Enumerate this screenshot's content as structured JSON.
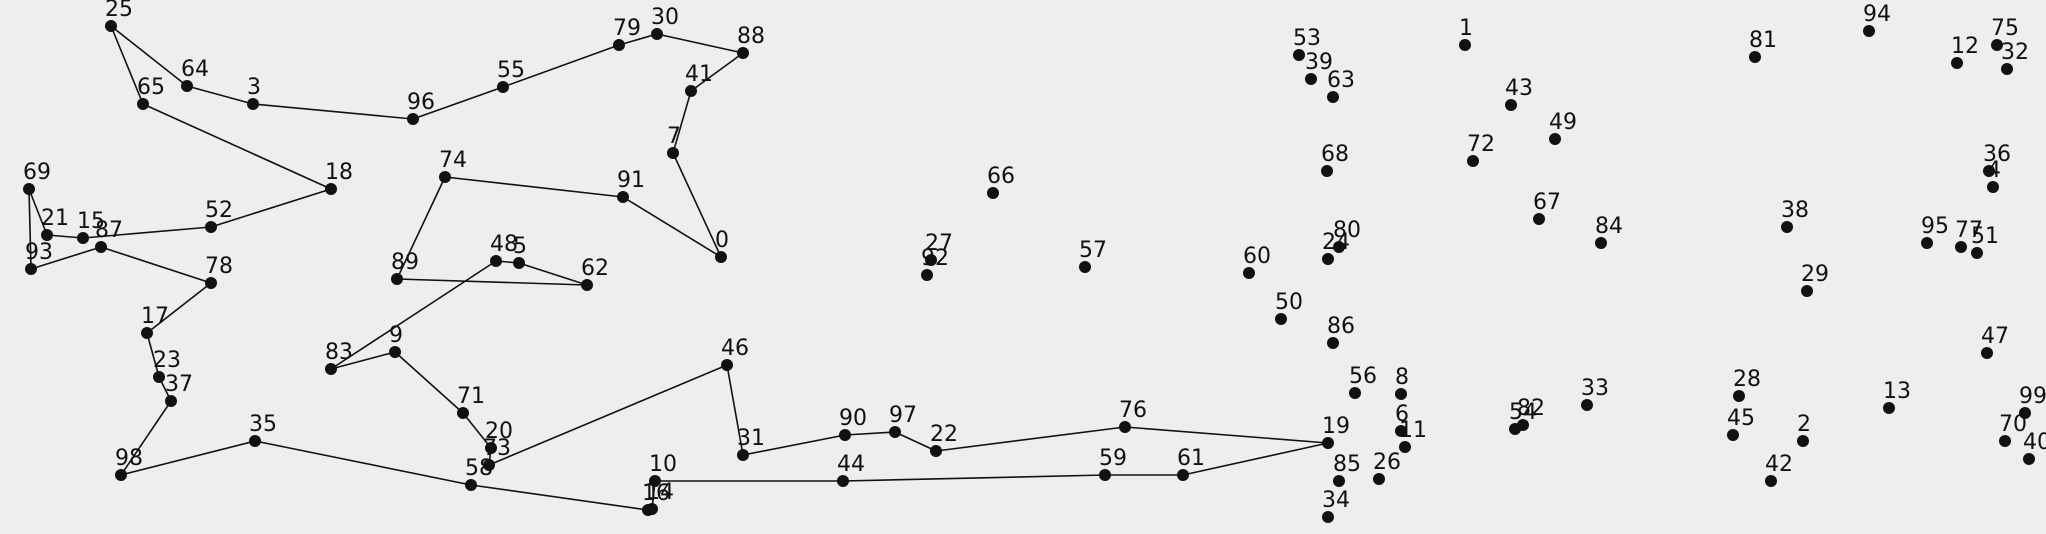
{
  "diagram": {
    "type": "numbered point graph with route",
    "nodes": [
      {
        "id": "0"
      },
      {
        "id": "1"
      },
      {
        "id": "2"
      },
      {
        "id": "3"
      },
      {
        "id": "4"
      },
      {
        "id": "5"
      },
      {
        "id": "6"
      },
      {
        "id": "7"
      },
      {
        "id": "8"
      },
      {
        "id": "9"
      },
      {
        "id": "10"
      },
      {
        "id": "11"
      },
      {
        "id": "12"
      },
      {
        "id": "13"
      },
      {
        "id": "14"
      },
      {
        "id": "15"
      },
      {
        "id": "16"
      },
      {
        "id": "17"
      },
      {
        "id": "18"
      },
      {
        "id": "19"
      },
      {
        "id": "20"
      },
      {
        "id": "21"
      },
      {
        "id": "22"
      },
      {
        "id": "23"
      },
      {
        "id": "24"
      },
      {
        "id": "25"
      },
      {
        "id": "26"
      },
      {
        "id": "27"
      },
      {
        "id": "28"
      },
      {
        "id": "29"
      },
      {
        "id": "30"
      },
      {
        "id": "31"
      },
      {
        "id": "32"
      },
      {
        "id": "33"
      },
      {
        "id": "34"
      },
      {
        "id": "35"
      },
      {
        "id": "36"
      },
      {
        "id": "37"
      },
      {
        "id": "38"
      },
      {
        "id": "39"
      },
      {
        "id": "40"
      },
      {
        "id": "41"
      },
      {
        "id": "42"
      },
      {
        "id": "43"
      },
      {
        "id": "44"
      },
      {
        "id": "45"
      },
      {
        "id": "46"
      },
      {
        "id": "47"
      },
      {
        "id": "48"
      },
      {
        "id": "49"
      },
      {
        "id": "50"
      },
      {
        "id": "51"
      },
      {
        "id": "52"
      },
      {
        "id": "53"
      },
      {
        "id": "54"
      },
      {
        "id": "55"
      },
      {
        "id": "56"
      },
      {
        "id": "57"
      },
      {
        "id": "58"
      },
      {
        "id": "59"
      },
      {
        "id": "60"
      },
      {
        "id": "61"
      },
      {
        "id": "62"
      },
      {
        "id": "63"
      },
      {
        "id": "64"
      },
      {
        "id": "65"
      },
      {
        "id": "66"
      },
      {
        "id": "67"
      },
      {
        "id": "68"
      },
      {
        "id": "69"
      },
      {
        "id": "70"
      },
      {
        "id": "71"
      },
      {
        "id": "72"
      },
      {
        "id": "73"
      },
      {
        "id": "74"
      },
      {
        "id": "75"
      },
      {
        "id": "76"
      },
      {
        "id": "77"
      },
      {
        "id": "78"
      },
      {
        "id": "79"
      },
      {
        "id": "80"
      },
      {
        "id": "81"
      },
      {
        "id": "82"
      },
      {
        "id": "83"
      },
      {
        "id": "84"
      },
      {
        "id": "85"
      },
      {
        "id": "86"
      },
      {
        "id": "87"
      },
      {
        "id": "88"
      },
      {
        "id": "89"
      },
      {
        "id": "90"
      },
      {
        "id": "91"
      },
      {
        "id": "92"
      },
      {
        "id": "93"
      },
      {
        "id": "94"
      },
      {
        "id": "95"
      },
      {
        "id": "96"
      },
      {
        "id": "97"
      },
      {
        "id": "98"
      },
      {
        "id": "99"
      }
    ],
    "route": [
      "19",
      "61",
      "59",
      "44",
      "10",
      "14",
      "16",
      "58",
      "35",
      "98",
      "37",
      "23",
      "17",
      "78",
      "87",
      "93",
      "69",
      "21",
      "15",
      "52",
      "18",
      "65",
      "25",
      "64",
      "3",
      "96",
      "55",
      "79",
      "30",
      "88",
      "41",
      "7",
      "0",
      "91",
      "74",
      "89",
      "62",
      "5",
      "48",
      "83",
      "9",
      "71",
      "20",
      "73",
      "46",
      "31",
      "90",
      "97",
      "22",
      "76",
      "19"
    ],
    "colors": {
      "background": "#eeeeee",
      "node": "#111111",
      "edge": "#111111",
      "label": "#111111"
    }
  }
}
